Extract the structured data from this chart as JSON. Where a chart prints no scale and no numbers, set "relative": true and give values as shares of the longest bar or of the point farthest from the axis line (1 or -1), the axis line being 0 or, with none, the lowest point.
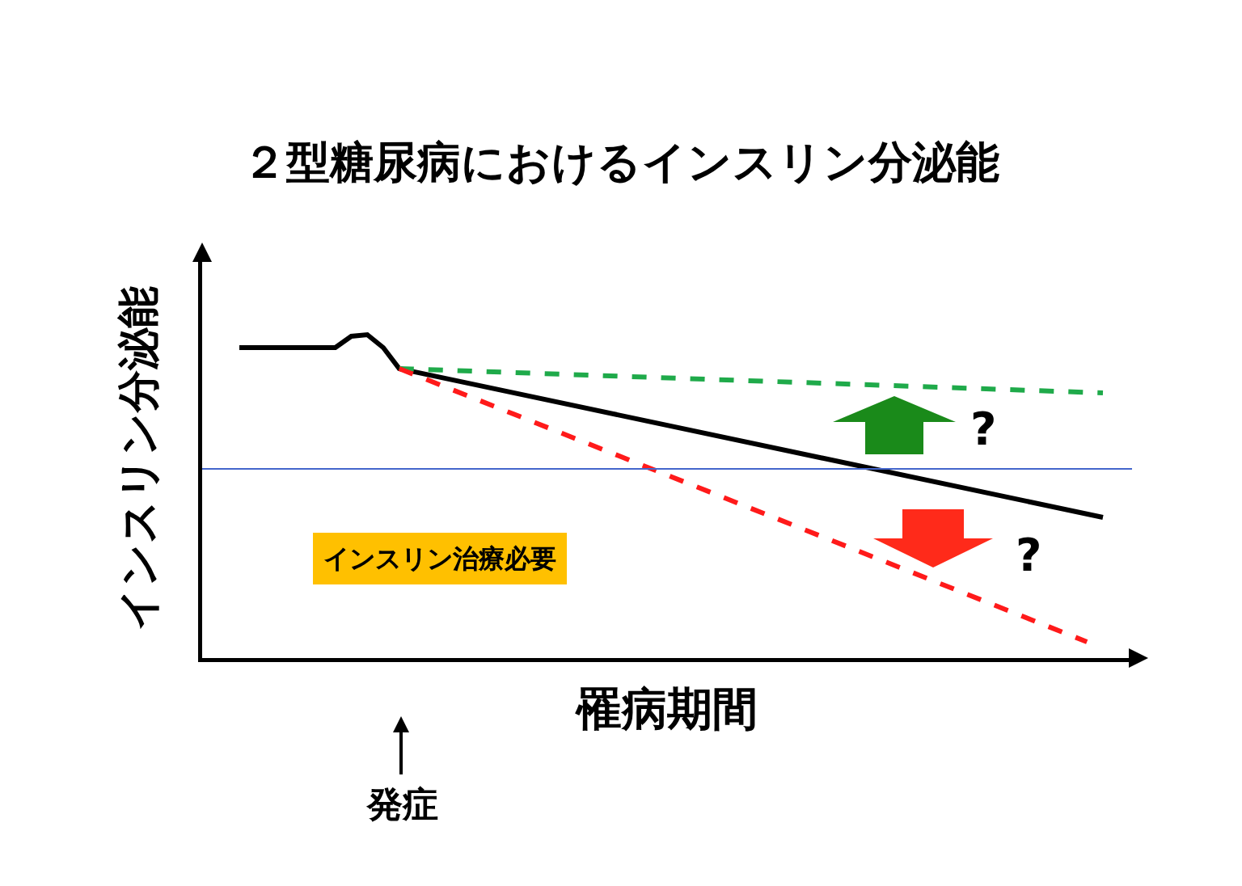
{
  "chart_data": {
    "type": "line",
    "title": "２型糖尿病におけるインスリン分泌能",
    "xlabel": "罹病期間",
    "ylabel": "インスリン分泌能",
    "relative": true,
    "categories": [
      null,
      null,
      null,
      null,
      null,
      null,
      null,
      null,
      null,
      null,
      null,
      null,
      null,
      null,
      null,
      null,
      null,
      null,
      null,
      null,
      null,
      null,
      null,
      null,
      null,
      null,
      null,
      null,
      null,
      null,
      null,
      null,
      null,
      null,
      null,
      null,
      null,
      null,
      null,
      null,
      null,
      null,
      null,
      null,
      null,
      null,
      null,
      null,
      null,
      null,
      null,
      null,
      null,
      null,
      null
    ],
    "series": [
      {
        "color": "#000000",
        "line_style": "solid",
        "values": [
          0.96,
          null,
          null,
          null,
          null,
          null,
          0.96,
          0.995,
          1.0,
          0.96,
          0.895,
          null,
          null,
          null,
          null,
          null,
          null,
          null,
          null,
          null,
          null,
          null,
          null,
          null,
          null,
          null,
          null,
          null,
          null,
          null,
          null,
          null,
          null,
          null,
          null,
          null,
          null,
          null,
          null,
          null,
          null,
          null,
          null,
          null,
          null,
          null,
          null,
          null,
          null,
          null,
          null,
          null,
          null,
          null,
          0.435
        ]
      },
      {
        "color": "#1faa4a",
        "line_style": "dashed",
        "values": [
          null,
          null,
          null,
          null,
          null,
          null,
          null,
          null,
          null,
          null,
          0.895,
          null,
          null,
          null,
          null,
          null,
          null,
          null,
          null,
          null,
          null,
          null,
          null,
          null,
          null,
          null,
          null,
          null,
          null,
          null,
          null,
          null,
          null,
          null,
          null,
          null,
          null,
          null,
          null,
          null,
          null,
          null,
          null,
          null,
          null,
          null,
          null,
          null,
          null,
          null,
          null,
          null,
          null,
          null,
          0.82
        ]
      },
      {
        "color": "#ff1a1a",
        "line_style": "dashed",
        "values": [
          null,
          null,
          null,
          null,
          null,
          null,
          null,
          null,
          null,
          null,
          0.895,
          null,
          null,
          null,
          null,
          null,
          null,
          null,
          null,
          null,
          null,
          null,
          null,
          null,
          null,
          null,
          null,
          null,
          null,
          null,
          null,
          null,
          null,
          null,
          null,
          null,
          null,
          null,
          null,
          null,
          null,
          null,
          null,
          null,
          null,
          null,
          null,
          null,
          null,
          null,
          null,
          null,
          null,
          0.05,
          null
        ]
      }
    ],
    "ref_lines": [
      {
        "axis": "y",
        "value": 0.585,
        "color": "#4466cc"
      }
    ],
    "annotations": [
      "インスリン治療必要",
      "?",
      "?",
      "発症"
    ]
  }
}
